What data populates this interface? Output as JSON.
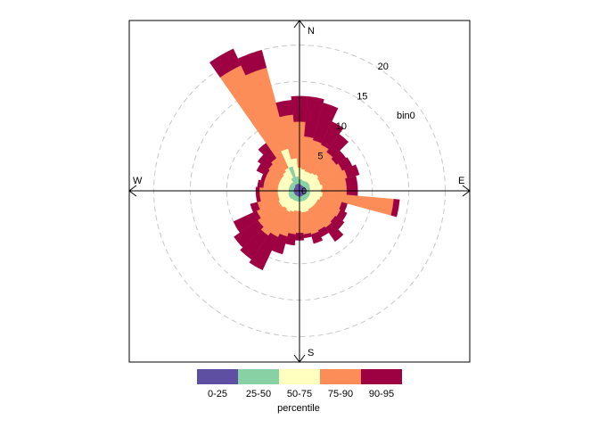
{
  "chart_data": {
    "type": "polar-annulus",
    "variable_label": "bin0",
    "compass": {
      "north": "N",
      "south": "S",
      "east": "E",
      "west": "W"
    },
    "radial_ticks": [
      5,
      10,
      15,
      20
    ],
    "radial_max": 23,
    "legend": {
      "title": "percentile",
      "entries": [
        {
          "label": "0-25",
          "color": "#5E4FA2"
        },
        {
          "label": "25-50",
          "color": "#88D1A4"
        },
        {
          "label": "50-75",
          "color": "#FFFFBF"
        },
        {
          "label": "75-90",
          "color": "#FC8D59"
        },
        {
          "label": "90-95",
          "color": "#9E0142"
        }
      ]
    },
    "sectors": [
      {
        "dir": 0,
        "p25": 1.0,
        "p50": 1.6,
        "p75": 3.2,
        "p90": 9.5,
        "p95": 13.0
      },
      {
        "dir": 10,
        "p25": 0.9,
        "p50": 1.6,
        "p75": 3.0,
        "p90": 7.5,
        "p95": 13.0
      },
      {
        "dir": 20,
        "p25": 0.8,
        "p50": 1.5,
        "p75": 2.8,
        "p90": 7.2,
        "p95": 12.5
      },
      {
        "dir": 30,
        "p25": 0.8,
        "p50": 1.5,
        "p75": 2.8,
        "p90": 7.0,
        "p95": 10.5
      },
      {
        "dir": 40,
        "p25": 0.8,
        "p50": 1.6,
        "p75": 3.0,
        "p90": 6.5,
        "p95": 9.5
      },
      {
        "dir": 50,
        "p25": 0.8,
        "p50": 1.6,
        "p75": 3.2,
        "p90": 6.2,
        "p95": 7.8
      },
      {
        "dir": 60,
        "p25": 0.9,
        "p50": 1.6,
        "p75": 3.0,
        "p90": 6.5,
        "p95": 8.0
      },
      {
        "dir": 70,
        "p25": 0.9,
        "p50": 1.5,
        "p75": 3.0,
        "p90": 6.8,
        "p95": 8.5
      },
      {
        "dir": 80,
        "p25": 0.8,
        "p50": 1.5,
        "p75": 3.2,
        "p90": 6.5,
        "p95": 8.0
      },
      {
        "dir": 90,
        "p25": 0.8,
        "p50": 1.4,
        "p75": 3.0,
        "p90": 6.5,
        "p95": 8.0
      },
      {
        "dir": 100,
        "p25": 0.8,
        "p50": 1.5,
        "p75": 3.2,
        "p90": 13.0,
        "p95": 13.8
      },
      {
        "dir": 110,
        "p25": 0.8,
        "p50": 1.5,
        "p75": 3.0,
        "p90": 6.0,
        "p95": 6.8
      },
      {
        "dir": 120,
        "p25": 0.8,
        "p50": 1.5,
        "p75": 2.8,
        "p90": 6.2,
        "p95": 7.2
      },
      {
        "dir": 130,
        "p25": 0.8,
        "p50": 1.5,
        "p75": 2.8,
        "p90": 6.0,
        "p95": 7.5
      },
      {
        "dir": 140,
        "p25": 0.8,
        "p50": 1.5,
        "p75": 2.8,
        "p90": 6.2,
        "p95": 8.5
      },
      {
        "dir": 150,
        "p25": 0.8,
        "p50": 1.5,
        "p75": 2.8,
        "p90": 6.0,
        "p95": 7.0
      },
      {
        "dir": 160,
        "p25": 0.8,
        "p50": 1.5,
        "p75": 3.0,
        "p90": 6.2,
        "p95": 7.5
      },
      {
        "dir": 170,
        "p25": 0.8,
        "p50": 1.5,
        "p75": 3.0,
        "p90": 6.0,
        "p95": 6.5
      },
      {
        "dir": 180,
        "p25": 0.8,
        "p50": 1.5,
        "p75": 2.8,
        "p90": 5.8,
        "p95": 6.8
      },
      {
        "dir": 190,
        "p25": 0.8,
        "p50": 1.5,
        "p75": 2.8,
        "p90": 6.0,
        "p95": 7.5
      },
      {
        "dir": 200,
        "p25": 0.8,
        "p50": 1.5,
        "p75": 3.0,
        "p90": 6.5,
        "p95": 9.0
      },
      {
        "dir": 210,
        "p25": 0.8,
        "p50": 1.5,
        "p75": 3.2,
        "p90": 7.0,
        "p95": 12.0
      },
      {
        "dir": 220,
        "p25": 0.8,
        "p50": 1.5,
        "p75": 3.0,
        "p90": 7.5,
        "p95": 11.5
      },
      {
        "dir": 230,
        "p25": 0.8,
        "p50": 1.6,
        "p75": 3.2,
        "p90": 7.0,
        "p95": 11.0
      },
      {
        "dir": 240,
        "p25": 0.8,
        "p50": 1.6,
        "p75": 3.2,
        "p90": 6.5,
        "p95": 10.0
      },
      {
        "dir": 250,
        "p25": 0.8,
        "p50": 1.6,
        "p75": 3.0,
        "p90": 6.0,
        "p95": 7.0
      },
      {
        "dir": 260,
        "p25": 0.8,
        "p50": 1.5,
        "p75": 3.0,
        "p90": 5.5,
        "p95": 6.0
      },
      {
        "dir": 270,
        "p25": 0.8,
        "p50": 1.5,
        "p75": 3.0,
        "p90": 5.5,
        "p95": 6.0
      },
      {
        "dir": 280,
        "p25": 0.8,
        "p50": 1.5,
        "p75": 3.0,
        "p90": 5.0,
        "p95": 5.8
      },
      {
        "dir": 290,
        "p25": 0.8,
        "p50": 1.5,
        "p75": 3.0,
        "p90": 5.0,
        "p95": 5.5
      },
      {
        "dir": 300,
        "p25": 0.8,
        "p50": 1.5,
        "p75": 3.0,
        "p90": 5.0,
        "p95": 6.5
      },
      {
        "dir": 310,
        "p25": 0.8,
        "p50": 1.5,
        "p75": 3.0,
        "p90": 5.2,
        "p95": 7.0
      },
      {
        "dir": 320,
        "p25": 0.9,
        "p50": 1.5,
        "p75": 3.2,
        "p90": 5.5,
        "p95": 8.0
      },
      {
        "dir": 330,
        "p25": 1.0,
        "p50": 2.0,
        "p75": 3.5,
        "p90": 19.0,
        "p95": 21.5
      },
      {
        "dir": 340,
        "p25": 1.0,
        "p50": 3.5,
        "p75": 6.0,
        "p90": 17.5,
        "p95": 20.0
      },
      {
        "dir": 350,
        "p25": 1.0,
        "p50": 2.0,
        "p75": 4.5,
        "p90": 10.5,
        "p95": 12.5
      }
    ]
  }
}
